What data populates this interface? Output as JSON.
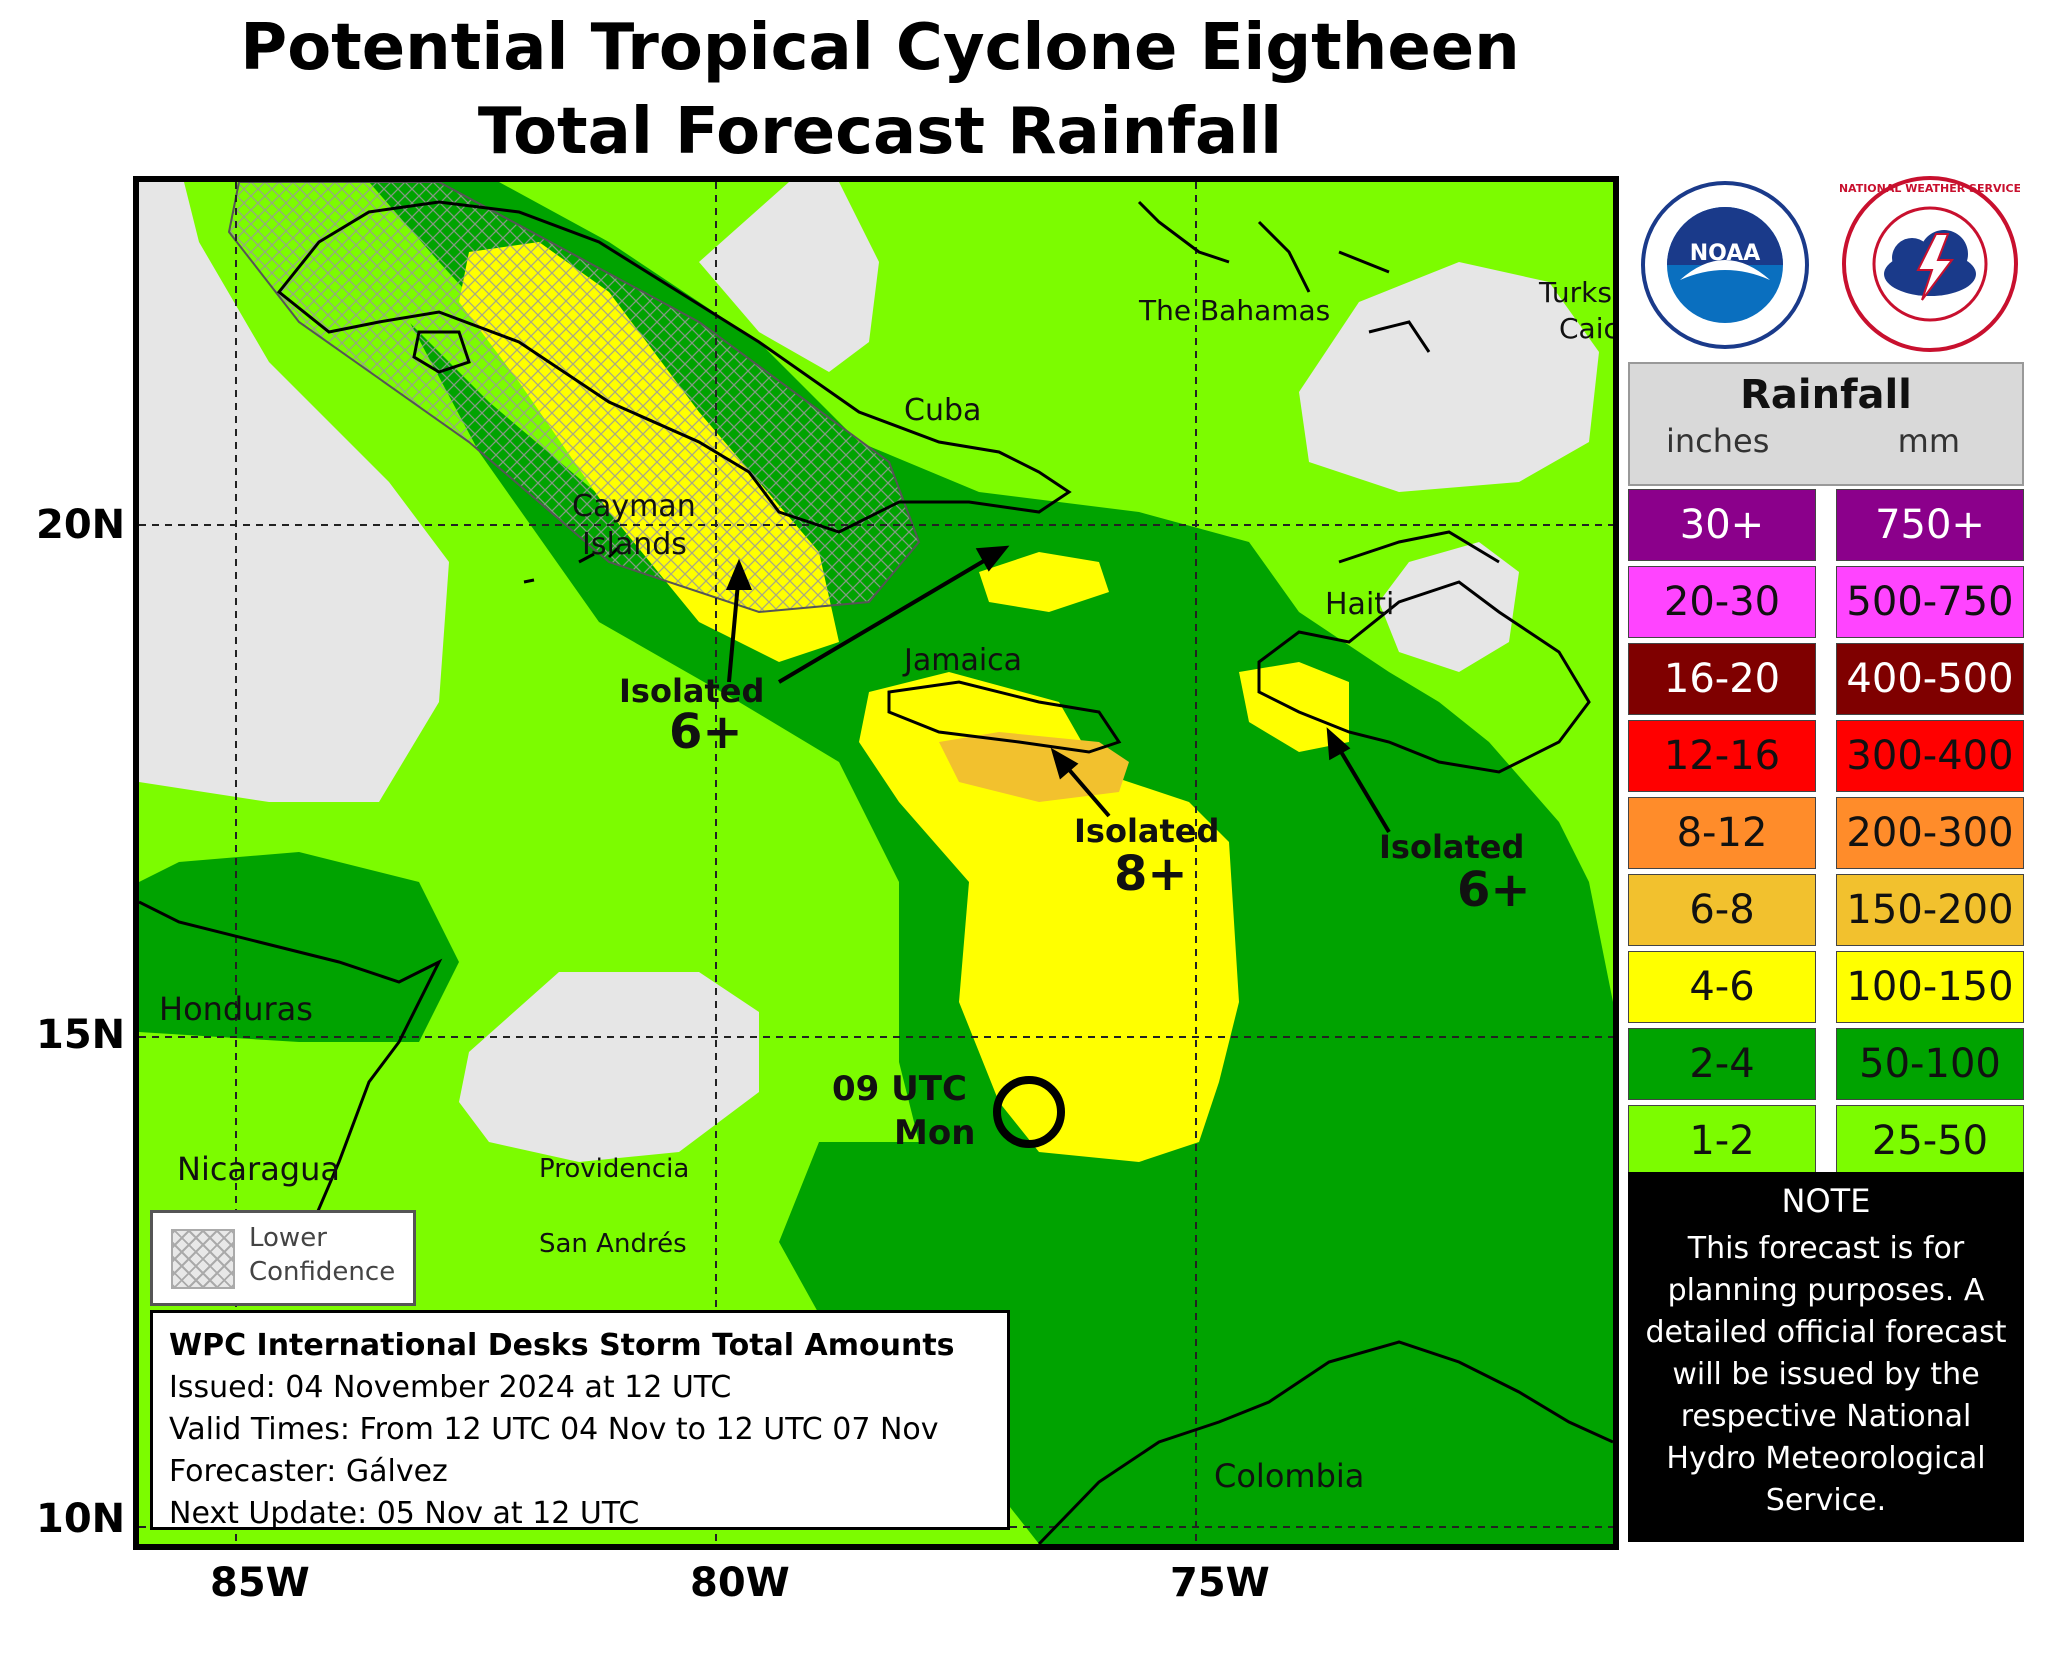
{
  "title_line1": "Potential Tropical Cyclone Eigtheen",
  "title_line2": "Total Forecast Rainfall",
  "lat_labels": [
    "20N",
    "15N",
    "10N"
  ],
  "lon_labels": [
    "85W",
    "80W",
    "75W"
  ],
  "places": {
    "bahamas": "The Bahamas",
    "turks1": "Turks",
    "turks2": "Caic",
    "cuba": "Cuba",
    "cayman1": "Cayman",
    "cayman2": "Islands",
    "haiti": "Haiti",
    "jamaica": "Jamaica",
    "honduras": "Honduras",
    "nicaragua": "Nicaragua",
    "providencia": "Providencia",
    "san_andres": "San Andrés",
    "colombia": "Colombia"
  },
  "annotations": {
    "a1_line1": "Isolated",
    "a1_line2": "6+",
    "a2_line1": "Isolated",
    "a2_line2": "8+",
    "a3_line1": "Isolated",
    "a3_line2": "6+",
    "storm_line1": "09 UTC",
    "storm_line2": "Mon"
  },
  "lower_confidence": {
    "line1": "Lower",
    "line2": "Confidence"
  },
  "info": {
    "heading": "WPC International Desks Storm Total Amounts",
    "issued": "Issued:  04 November 2024 at 12 UTC",
    "valid": "Valid Times:  From 12 UTC 04 Nov to 12 UTC 07 Nov",
    "forecaster": "Forecaster: Gálvez",
    "next_update": "Next Update: 05 Nov at 12 UTC"
  },
  "legend": {
    "title": "Rainfall",
    "inches_label": "inches",
    "mm_label": "mm",
    "rows": [
      {
        "inches": "30+",
        "mm": "750+",
        "color": "#8b008b",
        "text": "#ffffff"
      },
      {
        "inches": "20-30",
        "mm": "500-750",
        "color": "#ff44ff",
        "text": "#111111"
      },
      {
        "inches": "16-20",
        "mm": "400-500",
        "color": "#7f0000",
        "text": "#ffffff"
      },
      {
        "inches": "12-16",
        "mm": "300-400",
        "color": "#ff0000",
        "text": "#111111"
      },
      {
        "inches": "8-12",
        "mm": "200-300",
        "color": "#ff8c2a",
        "text": "#111111"
      },
      {
        "inches": "6-8",
        "mm": "150-200",
        "color": "#f2c12e",
        "text": "#111111"
      },
      {
        "inches": "4-6",
        "mm": "100-150",
        "color": "#ffff00",
        "text": "#111111"
      },
      {
        "inches": "2-4",
        "mm": "50-100",
        "color": "#00a300",
        "text": "#111111"
      },
      {
        "inches": "1-2",
        "mm": "25-50",
        "color": "#7cfc00",
        "text": "#111111"
      }
    ]
  },
  "note": {
    "title": "NOTE",
    "body": "This forecast is for planning purposes. A detailed official forecast will be issued by the respective National Hydro Meteorological Service."
  },
  "logos": {
    "noaa_text": "NOAA",
    "nws_text": "NATIONAL WEATHER SERVICE"
  }
}
